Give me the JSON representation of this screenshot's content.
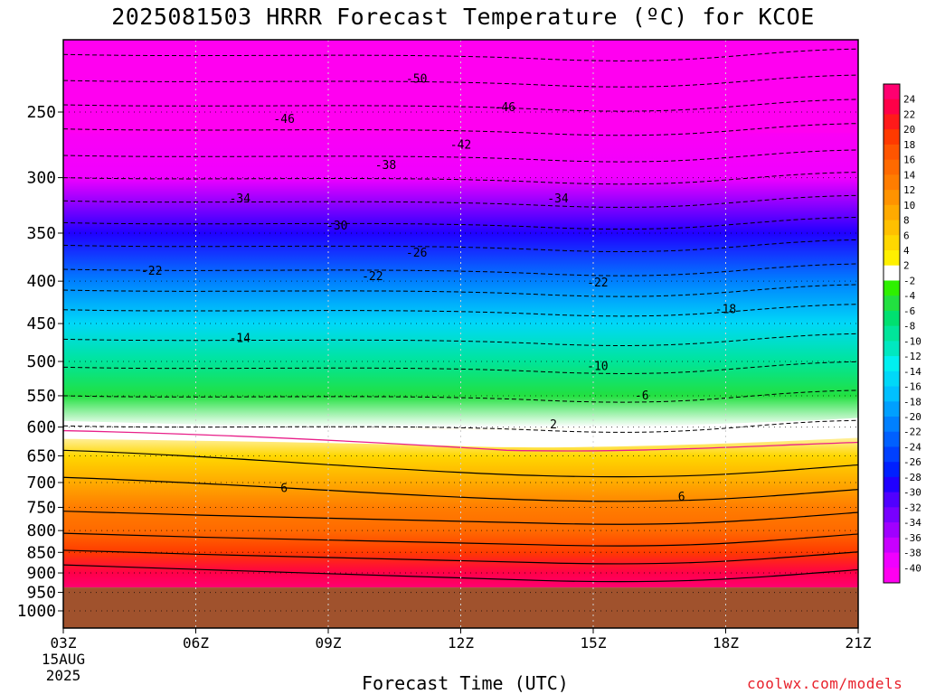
{
  "title": "2025081503 HRRR Forecast Temperature (ºC) for KCOE",
  "xlabel": "Forecast Time (UTC)",
  "credit": "coolwx.com/models",
  "colors": {
    "ground": "#a0522d",
    "freezing_line": "#e8208a",
    "title_text": "#000000",
    "credit_text": "#e8202a"
  },
  "chart_data": {
    "type": "heatmap",
    "title": "2025081503 HRRR Forecast Temperature (ºC) for KCOE",
    "xlabel": "Forecast Time (UTC)",
    "ylabel": "",
    "x_ticks": [
      {
        "hour": 3,
        "label": "03Z",
        "sub1": "15AUG",
        "sub2": "2025"
      },
      {
        "hour": 6,
        "label": "06Z"
      },
      {
        "hour": 9,
        "label": "09Z"
      },
      {
        "hour": 12,
        "label": "12Z"
      },
      {
        "hour": 15,
        "label": "15Z"
      },
      {
        "hour": 18,
        "label": "18Z"
      },
      {
        "hour": 21,
        "label": "21Z"
      }
    ],
    "xlim": [
      3,
      21
    ],
    "y_ticks_hpa": [
      250,
      300,
      350,
      400,
      450,
      500,
      550,
      600,
      650,
      700,
      750,
      800,
      850,
      900,
      950,
      1000
    ],
    "ylim_hpa": [
      1050,
      200
    ],
    "y_scale": "log-pressure (inverted)",
    "grid": true,
    "ground_level_hpa": 937,
    "colorbar": {
      "levels": [
        "24",
        "22",
        "20",
        "18",
        "16",
        "14",
        "12",
        "10",
        "8",
        "6",
        "4",
        "2",
        "-2",
        "-4",
        "-6",
        "-8",
        "-10",
        "-12",
        "-14",
        "-16",
        "-18",
        "-20",
        "-22",
        "-24",
        "-26",
        "-28",
        "-30",
        "-32",
        "-34",
        "-36",
        "-38",
        "-40"
      ],
      "colors": [
        "#ff0070",
        "#ff0048",
        "#ff1a1a",
        "#ff3a00",
        "#ff5500",
        "#ff6a00",
        "#ff7d00",
        "#ff9300",
        "#ffaa00",
        "#ffc000",
        "#ffd700",
        "#fff000",
        "#ffffff",
        "#2ef000",
        "#22e040",
        "#00e070",
        "#00e59a",
        "#00e8c0",
        "#00f0f0",
        "#00d8f8",
        "#00c0ff",
        "#00a0ff",
        "#0080ff",
        "#0060ff",
        "#0040ff",
        "#0020ff",
        "#2000ff",
        "#5000ff",
        "#7800ff",
        "#a000ff",
        "#c800ff",
        "#f000ff",
        "#ff00f0"
      ],
      "position": "right"
    },
    "temperature_profile": {
      "pressure_hpa": [
        200,
        250,
        300,
        350,
        400,
        450,
        500,
        550,
        600,
        650,
        700,
        750,
        800,
        850,
        900,
        937
      ],
      "temp_c_at_03z": [
        -56,
        -47,
        -40,
        -30,
        -22,
        -15,
        -10,
        -5,
        0,
        5,
        8,
        12,
        15,
        19,
        22,
        24
      ]
    },
    "contour_labels": [
      {
        "text": "-50",
        "hour": 11.0,
        "hpa": 228
      },
      {
        "text": "-46",
        "hour": 13.0,
        "hpa": 247
      },
      {
        "text": "-46",
        "hour": 8.0,
        "hpa": 255
      },
      {
        "text": "-42",
        "hour": 12.0,
        "hpa": 274
      },
      {
        "text": "-38",
        "hour": 10.3,
        "hpa": 290
      },
      {
        "text": "-34",
        "hour": 14.2,
        "hpa": 318
      },
      {
        "text": "-34",
        "hour": 7.0,
        "hpa": 318
      },
      {
        "text": "-30",
        "hour": 9.2,
        "hpa": 343
      },
      {
        "text": "-26",
        "hour": 11.0,
        "hpa": 370
      },
      {
        "text": "-22",
        "hour": 5.0,
        "hpa": 389
      },
      {
        "text": "-22",
        "hour": 10.0,
        "hpa": 395
      },
      {
        "text": "-22",
        "hour": 15.1,
        "hpa": 402
      },
      {
        "text": "-18",
        "hour": 18.0,
        "hpa": 433
      },
      {
        "text": "-14",
        "hour": 7.0,
        "hpa": 469
      },
      {
        "text": "-10",
        "hour": 15.1,
        "hpa": 507
      },
      {
        "text": "-6",
        "hour": 16.1,
        "hpa": 550
      },
      {
        "text": "2",
        "hour": 14.1,
        "hpa": 596
      },
      {
        "text": "6",
        "hour": 8.0,
        "hpa": 712
      },
      {
        "text": "6",
        "hour": 17.0,
        "hpa": 729
      }
    ]
  }
}
